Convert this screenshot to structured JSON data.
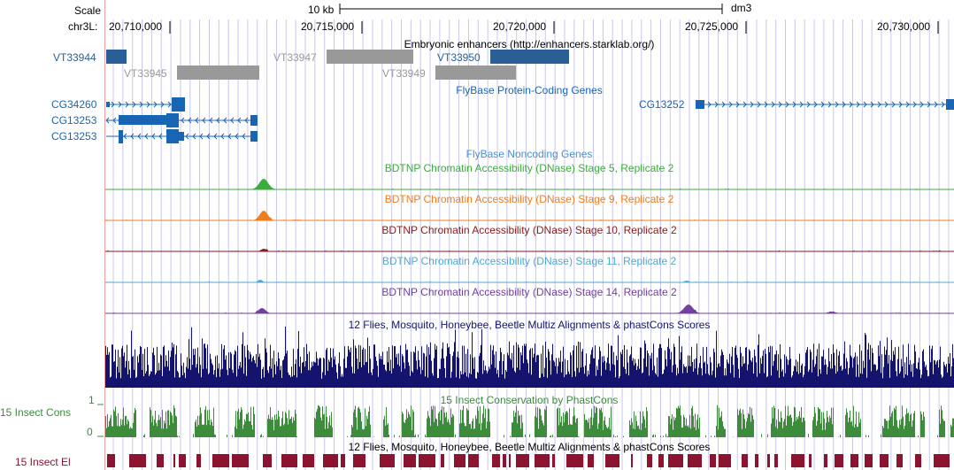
{
  "ruler": {
    "scale_label": "Scale",
    "scale_bar_label": "10 kb",
    "assembly": "dm3",
    "chrom_label": "chr3L:",
    "ticks": [
      "20,710,000",
      "20,715,000",
      "20,720,000",
      "20,725,000",
      "20,730,000"
    ]
  },
  "tracks": {
    "enhancers": {
      "title": "Embryonic enhancers (http://enhancers.starklab.org/)",
      "items": [
        {
          "label": "VT33944",
          "highlight": true
        },
        {
          "label": "VT33945",
          "highlight": false
        },
        {
          "label": "VT33947",
          "highlight": false
        },
        {
          "label": "VT33949",
          "highlight": false
        },
        {
          "label": "VT33950",
          "highlight": true
        }
      ]
    },
    "genes": {
      "title": "FlyBase Protein-Coding Genes",
      "items": [
        "CG34260",
        "CG13253",
        "CG13253",
        "CG13252"
      ]
    },
    "noncoding": {
      "title": "FlyBase Noncoding Genes"
    },
    "dnase": [
      {
        "title": "BDTNP Chromatin Accessibility (DNase) Stage 5, Replicate 2",
        "color": "#3cac3c"
      },
      {
        "title": "BDTNP Chromatin Accessibility (DNase) Stage 9, Replicate 2",
        "color": "#f07d1e"
      },
      {
        "title": "BDTNP Chromatin Accessibility (DNase) Stage 10, Replicate 2",
        "color": "#8c1a1a"
      },
      {
        "title": "BDTNP Chromatin Accessibility (DNase) Stage 11, Replicate 2",
        "color": "#4fa8d0"
      },
      {
        "title": "BDTNP Chromatin Accessibility (DNase) Stage 14, Replicate 2",
        "color": "#7440a0"
      }
    ],
    "multiz": {
      "title": "12 Flies, Mosquito, Honeybee, Beetle Multiz Alignments & phastCons Scores",
      "color": "#14146e"
    },
    "cons": {
      "title": "15 Insect Conservation by PhastCons",
      "side_label": "15 Insect Cons",
      "y_max": "1",
      "y_min": "0",
      "color": "#3c8c3c"
    },
    "elements": {
      "title": "12 Flies, Mosquito, Honeybee, Beetle Multiz Alignments & phastCons Scores",
      "side_label": "15 Insect El",
      "color": "#8c1430"
    }
  },
  "colors": {
    "enhancer_highlight": "#2a5f96",
    "enhancer_gray": "#999999",
    "gene_blue": "#1a64b4",
    "grid_blue": "#c8c8f0",
    "left_margin_line": "#f0a0a0"
  }
}
